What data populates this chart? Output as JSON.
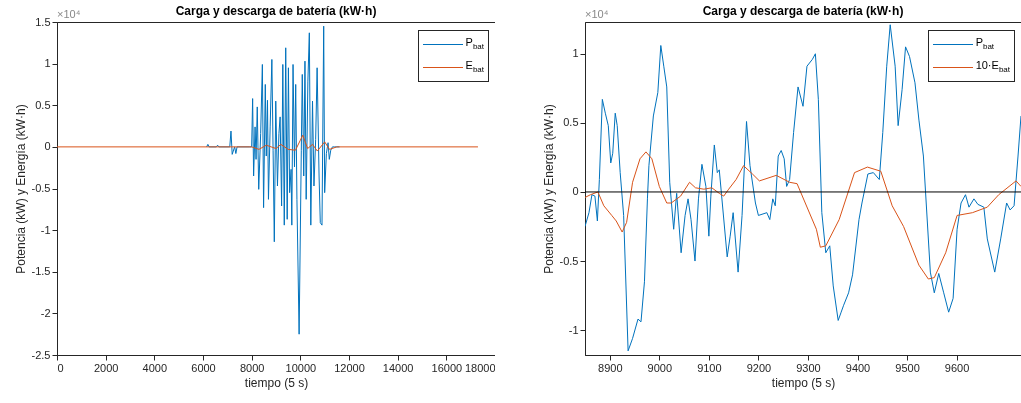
{
  "chart_data": [
    {
      "type": "line",
      "title": "Carga y descarga de batería (kW·h)",
      "xlabel": "tiempo (5 s)",
      "ylabel": "Potencia (kW) y Energía (kW·h)",
      "annotations": [
        "×10⁴"
      ],
      "xlim": [
        0,
        18000
      ],
      "xticks": [
        0,
        2000,
        4000,
        6000,
        8000,
        10000,
        12000,
        14000,
        16000,
        18000
      ],
      "ylim": [
        -2.5,
        1.5
      ],
      "yticks": [
        -2.5,
        -2,
        -1.5,
        -1,
        -0.5,
        0,
        0.5,
        1,
        1.5
      ],
      "legend": "top right",
      "series": [
        {
          "name": "P$_{bat}$",
          "color": "#0072bd",
          "x": [
            6150,
            6200,
            6250,
            6550,
            6600,
            6650,
            7100,
            7150,
            7200,
            7300,
            7350,
            7400,
            7900,
            8000,
            8040,
            8080,
            8140,
            8180,
            8230,
            8290,
            8370,
            8440,
            8490,
            8560,
            8600,
            8650,
            8690,
            8760,
            8830,
            8880,
            8930,
            8990,
            9060,
            9120,
            9170,
            9230,
            9280,
            9340,
            9400,
            9460,
            9510,
            9560,
            9620,
            9650,
            9700,
            9760,
            9810,
            9860,
            9950,
            10040,
            10080,
            10140,
            10190,
            10240,
            10310,
            10370,
            10430,
            10500,
            10560,
            10630,
            10690,
            10770,
            10820,
            10890,
            10960,
            11000,
            11070,
            11140,
            11190,
            11250,
            11320,
            11400,
            11500,
            11610
          ],
          "values": [
            0,
            0.03,
            0,
            0,
            0.02,
            0,
            0,
            0.19,
            -0.09,
            0,
            -0.08,
            0,
            0,
            0,
            0.58,
            -0.35,
            0.24,
            -0.15,
            0.48,
            -0.51,
            0.16,
            0.99,
            -0.73,
            0.75,
            -0.11,
            0.56,
            -0.63,
            0.24,
            1.05,
            -0.04,
            -1.14,
            0.55,
            -0.47,
            0.16,
            0.36,
            -0.71,
            0.99,
            -0.94,
            1.19,
            -0.87,
            0.95,
            -0.55,
            -0.27,
            -0.94,
            0.99,
            -0.24,
            0.75,
            -0.63,
            -2.25,
            -0.04,
            0.87,
            -0.35,
            1.03,
            -0.63,
            0.79,
            1.37,
            -0.94,
            0.55,
            -0.47,
            0.09,
            0.95,
            -0.35,
            -0.91,
            -0.94,
            1.45,
            -0.55,
            -0.08,
            0.05,
            -0.15,
            -0.04,
            0,
            0,
            0,
            0
          ]
        },
        {
          "name": "E$_{bat}$",
          "color": "#d95319",
          "x": [
            0,
            8000,
            8300,
            8600,
            9000,
            9200,
            9500,
            9800,
            10000,
            10100,
            10300,
            10500,
            10700,
            11000,
            11200,
            11500,
            17300
          ],
          "values": [
            0,
            0,
            -0.03,
            0.02,
            -0.02,
            0.03,
            -0.03,
            -0.04,
            0.08,
            0.14,
            -0.02,
            0.03,
            -0.05,
            0.06,
            -0.03,
            0,
            0
          ]
        }
      ]
    },
    {
      "type": "line",
      "title": "Carga y descarga de batería (kW·h)",
      "xlabel": "tiempo (5 s)",
      "ylabel": "Potencia (kW) y Energía (kW·h)",
      "annotations": [
        "×10⁴"
      ],
      "xlim": [
        8850,
        9730
      ],
      "xticks": [
        8900,
        9000,
        9100,
        9200,
        9300,
        9400,
        9500,
        9600
      ],
      "ylim": [
        -1.18,
        1.23
      ],
      "yticks": [
        -1,
        -0.5,
        0,
        0.5,
        1
      ],
      "legend": "top right",
      "ref_lines": [
        {
          "axis": "y",
          "value": 0,
          "color": "#000000"
        }
      ],
      "series": [
        {
          "name": "P$_{bat}$",
          "color": "#0072bd",
          "x": [
            8850,
            8858,
            8864,
            8870,
            8875,
            8879,
            8885,
            8891,
            8897,
            8902,
            8906,
            8911,
            8915,
            8921,
            8928,
            8937,
            8946,
            8957,
            8963,
            8970,
            8976,
            8979,
            8988,
            8997,
            9003,
            9009,
            9015,
            9021,
            9029,
            9035,
            9044,
            9052,
            9058,
            9064,
            9072,
            9079,
            9086,
            9094,
            9100,
            9104,
            9111,
            9117,
            9121,
            9137,
            9143,
            9149,
            9159,
            9167,
            9176,
            9183,
            9194,
            9200,
            9217,
            9223,
            9229,
            9234,
            9240,
            9246,
            9252,
            9257,
            9263,
            9271,
            9280,
            9290,
            9298,
            9309,
            9315,
            9321,
            9328,
            9336,
            9344,
            9351,
            9361,
            9367,
            9372,
            9382,
            9390,
            9403,
            9409,
            9421,
            9432,
            9444,
            9451,
            9459,
            9466,
            9476,
            9482,
            9490,
            9497,
            9505,
            9516,
            9524,
            9533,
            9547,
            9555,
            9564,
            9574,
            9584,
            9593,
            9601,
            9609,
            9618,
            9625,
            9635,
            9643,
            9655,
            9662,
            9677,
            9689,
            9701,
            9708,
            9716,
            9724,
            9730
          ],
          "values": [
            -0.25,
            -0.15,
            -0.02,
            -0.03,
            -0.21,
            0.09,
            0.67,
            0.57,
            0.48,
            0.21,
            0.28,
            0.57,
            0.48,
            0.14,
            -0.17,
            -1.15,
            -1.06,
            -0.92,
            -0.94,
            -0.65,
            -0.05,
            0.19,
            0.55,
            0.72,
            1.06,
            0.91,
            0.76,
            0.07,
            -0.27,
            -0.01,
            -0.44,
            -0.17,
            -0.05,
            -0.2,
            -0.5,
            -0.05,
            0.2,
            0.04,
            -0.32,
            -0.03,
            0.34,
            0.14,
            0.16,
            -0.47,
            -0.32,
            -0.15,
            -0.58,
            -0.17,
            0.51,
            0.19,
            -0.08,
            -0.17,
            -0.15,
            -0.2,
            -0.05,
            -0.1,
            0.26,
            0.3,
            0.24,
            0.04,
            0.09,
            0.43,
            0.76,
            0.62,
            0.91,
            0.96,
            1.0,
            0.67,
            -0.15,
            -0.44,
            -0.39,
            -0.68,
            -0.93,
            -0.87,
            -0.82,
            -0.73,
            -0.6,
            -0.2,
            -0.08,
            0.13,
            0.14,
            0.09,
            0.43,
            0.91,
            1.21,
            0.91,
            0.48,
            0.74,
            1.05,
            0.98,
            0.79,
            0.52,
            0.26,
            -0.58,
            -0.73,
            -0.59,
            -0.73,
            -0.87,
            -0.77,
            -0.27,
            -0.08,
            -0.02,
            -0.11,
            -0.05,
            -0.09,
            -0.11,
            -0.34,
            -0.58,
            -0.34,
            -0.08,
            -0.13,
            -0.1,
            0.26,
            0.55
          ]
        },
        {
          "name": "10·E$_{bat}$",
          "color": "#d95319",
          "x": [
            8850,
            8861,
            8876,
            8888,
            8904,
            8913,
            8925,
            8934,
            8946,
            8961,
            8973,
            8985,
            9000,
            9015,
            9024,
            9043,
            9061,
            9073,
            9090,
            9106,
            9121,
            9130,
            9140,
            9155,
            9170,
            9188,
            9202,
            9236,
            9263,
            9278,
            9317,
            9325,
            9336,
            9363,
            9394,
            9420,
            9447,
            9470,
            9493,
            9524,
            9543,
            9555,
            9578,
            9601,
            9632,
            9662,
            9685,
            9720,
            9730
          ],
          "values": [
            -0.04,
            -0.02,
            0,
            -0.1,
            -0.17,
            -0.21,
            -0.29,
            -0.22,
            0.07,
            0.24,
            0.29,
            0.24,
            0.04,
            -0.08,
            -0.08,
            -0.03,
            0.07,
            0.03,
            0.02,
            0.03,
            -0.01,
            -0.03,
            0.02,
            0.09,
            0.19,
            0.13,
            0.08,
            0.12,
            0.07,
            0.06,
            -0.27,
            -0.4,
            -0.39,
            -0.2,
            0.14,
            0.18,
            0.15,
            -0.1,
            -0.25,
            -0.53,
            -0.63,
            -0.62,
            -0.44,
            -0.17,
            -0.15,
            -0.11,
            -0.02,
            0.08,
            0.04
          ]
        }
      ]
    }
  ]
}
